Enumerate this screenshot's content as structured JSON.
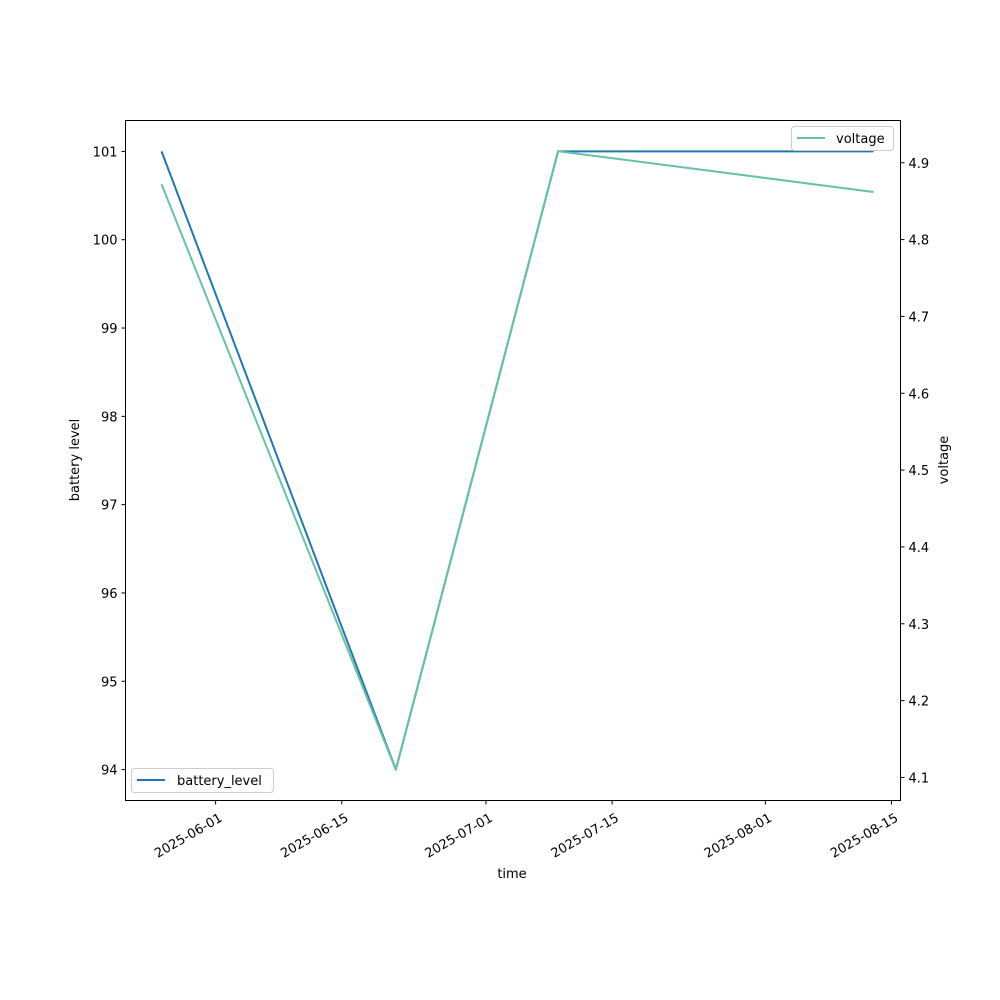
{
  "chart_data": {
    "type": "line",
    "xlabel": "time",
    "ylabel_left": "battery level",
    "ylabel_right": "voltage",
    "xlim": [
      "2025-05-22",
      "2025-08-16"
    ],
    "ylim_left": [
      93.65,
      101.35
    ],
    "ylim_right": [
      4.07,
      4.955
    ],
    "x_ticks": [
      "2025-06-01",
      "2025-06-15",
      "2025-07-01",
      "2025-07-15",
      "2025-08-01",
      "2025-08-15"
    ],
    "y_ticks_left": [
      94,
      95,
      96,
      97,
      98,
      99,
      100,
      101
    ],
    "y_ticks_right": [
      4.1,
      4.2,
      4.3,
      4.4,
      4.5,
      4.6,
      4.7,
      4.8,
      4.9
    ],
    "grid": false,
    "series": [
      {
        "name": "battery_level",
        "axis": "left",
        "color": "#1f77b4",
        "legend_position": "lower-left",
        "x": [
          "2025-05-26",
          "2025-06-21",
          "2025-07-09",
          "2025-08-13"
        ],
        "values": [
          101,
          94,
          101,
          101
        ]
      },
      {
        "name": "voltage",
        "axis": "right",
        "color": "#66c2a5",
        "legend_position": "upper-right",
        "x": [
          "2025-05-26",
          "2025-06-21",
          "2025-07-09",
          "2025-08-13"
        ],
        "values": [
          4.872,
          4.11,
          4.915,
          4.862
        ]
      }
    ]
  }
}
